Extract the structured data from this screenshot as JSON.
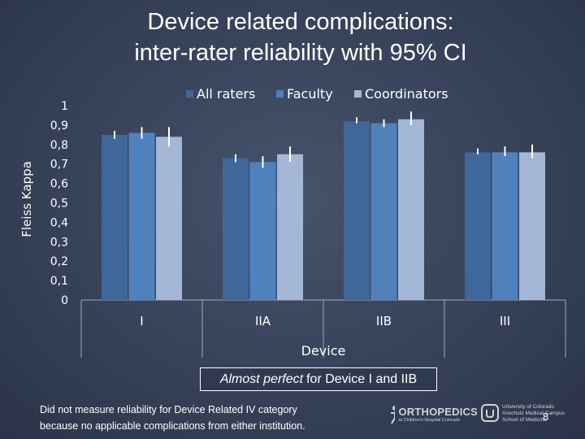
{
  "title_lines": [
    "Device related complications:",
    "inter-rater reliability with 95% CI"
  ],
  "chart_data": {
    "type": "bar",
    "title": "Device related complications: inter-rater reliability with 95% CI",
    "xlabel": "Device",
    "ylabel": "Fleiss Kappa",
    "ylim": [
      0,
      1
    ],
    "y_ticks": [
      "0",
      "0,1",
      "0,2",
      "0,3",
      "0,4",
      "0,5",
      "0,6",
      "0,7",
      "0,8",
      "0,9",
      "1"
    ],
    "categories": [
      "I",
      "IIA",
      "IIB",
      "III"
    ],
    "legend_position": "top",
    "series": [
      {
        "name": "All raters",
        "color": "#3f679a",
        "values": [
          0.85,
          0.73,
          0.92,
          0.76
        ],
        "ci_low": [
          0.83,
          0.71,
          0.91,
          0.75
        ],
        "ci_high": [
          0.87,
          0.75,
          0.94,
          0.78
        ]
      },
      {
        "name": "Faculty",
        "color": "#4f81bd",
        "values": [
          0.86,
          0.71,
          0.91,
          0.76
        ],
        "ci_low": [
          0.83,
          0.68,
          0.89,
          0.74
        ],
        "ci_high": [
          0.89,
          0.74,
          0.93,
          0.79
        ]
      },
      {
        "name": "Coordinators",
        "color": "#a5b7d6",
        "values": [
          0.84,
          0.75,
          0.93,
          0.76
        ],
        "ci_low": [
          0.79,
          0.71,
          0.9,
          0.73
        ],
        "ci_high": [
          0.89,
          0.79,
          0.97,
          0.8
        ]
      }
    ]
  },
  "callout": {
    "italic": "Almost perfect",
    "rest": "for Device I and IIB"
  },
  "footnote_lines": [
    "Did not measure reliability for Device Related IV category",
    "because no applicable complications from either institution."
  ],
  "logos": {
    "orthopedics": "ORTHOPEDICS",
    "orthopedics_sub": "at Children's Hospital Colorado",
    "cu_lines": [
      "University of Colorado",
      "Anschutz Medical Campus",
      "School of Medicine"
    ]
  },
  "slide_number": "8"
}
